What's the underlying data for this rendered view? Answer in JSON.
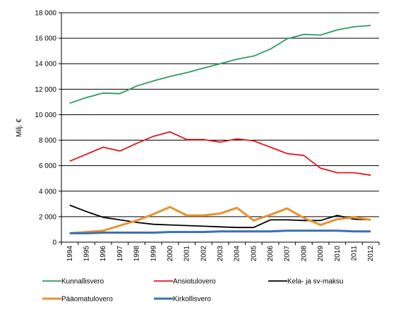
{
  "chart_data": {
    "type": "line",
    "title": "",
    "xlabel": "",
    "ylabel": "Milj. €",
    "ylim": [
      0,
      18000
    ],
    "y_ticks": [
      "0",
      "2 000",
      "4 000",
      "6 000",
      "8 000",
      "10 000",
      "12 000",
      "14 000",
      "16 000",
      "18 000"
    ],
    "categories": [
      "1994",
      "1995",
      "1996",
      "1997",
      "1998",
      "1999",
      "2000",
      "2001",
      "2002",
      "2003",
      "2004",
      "2005",
      "2006",
      "2007",
      "2008",
      "2009",
      "2010",
      "2011",
      "2012"
    ],
    "grid": "horizontal",
    "legend_position": "bottom",
    "series": [
      {
        "name": "Kunnallisvero",
        "color": "#2e9a5e",
        "values": [
          10900,
          11350,
          11700,
          11650,
          12250,
          12650,
          13000,
          13300,
          13650,
          14000,
          14350,
          14600,
          15150,
          15950,
          16300,
          16250,
          16650,
          16900,
          17000
        ]
      },
      {
        "name": "Ansiotulovero",
        "color": "#e8141b",
        "values": [
          6350,
          6900,
          7450,
          7150,
          7750,
          8300,
          8650,
          8050,
          8050,
          7850,
          8100,
          7950,
          7450,
          6950,
          6800,
          5800,
          5450,
          5450,
          5250
        ]
      },
      {
        "name": "Kela- ja sv-maksu",
        "color": "#000000",
        "values": [
          2900,
          2400,
          1950,
          1750,
          1550,
          1400,
          1350,
          1300,
          1250,
          1200,
          1150,
          1150,
          1750,
          1750,
          1700,
          1700,
          2100,
          1800,
          1750
        ]
      },
      {
        "name": "Pääomatulovero",
        "color": "#e8922e",
        "values": [
          700,
          800,
          900,
          1300,
          1700,
          2200,
          2750,
          2100,
          2100,
          2250,
          2700,
          1700,
          2150,
          2650,
          1900,
          1350,
          1800,
          1950,
          1750
        ]
      },
      {
        "name": "Kirkollisvero",
        "color": "#3d6fb0",
        "values": [
          700,
          700,
          750,
          750,
          750,
          750,
          800,
          800,
          800,
          850,
          850,
          850,
          850,
          900,
          900,
          900,
          900,
          850,
          850
        ]
      }
    ]
  }
}
